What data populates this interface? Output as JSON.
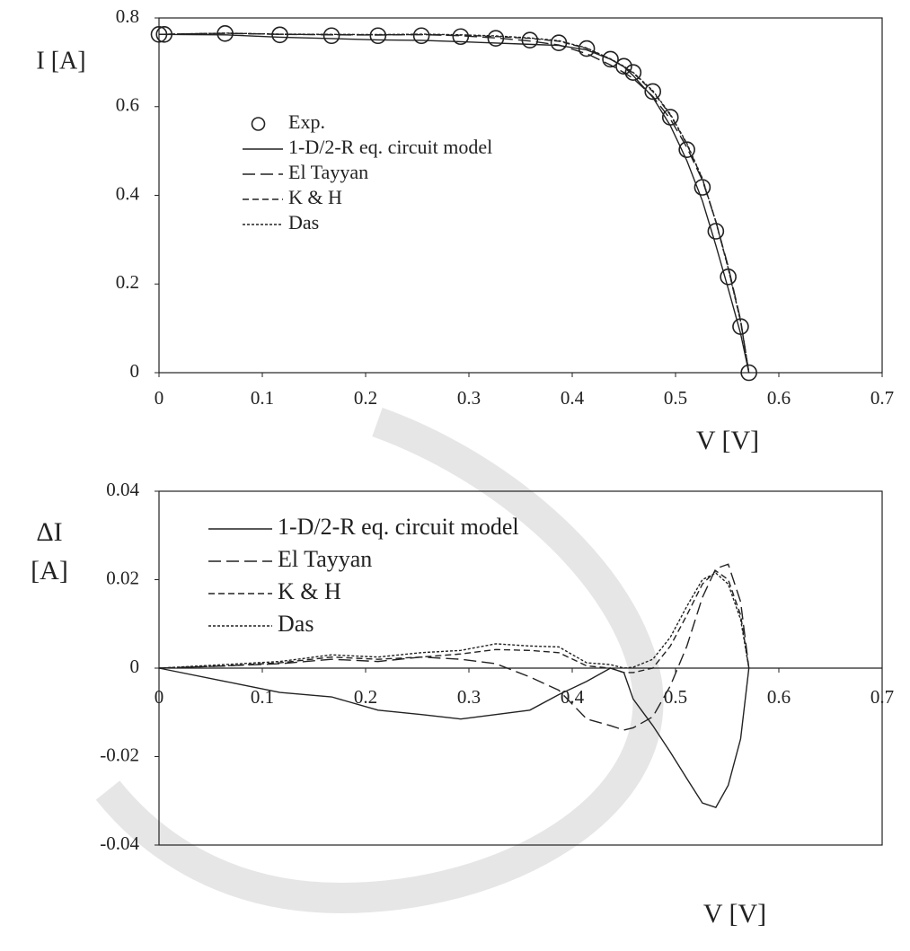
{
  "chart_data": [
    {
      "type": "line",
      "xlabel": "V [V]",
      "ylabel": "I [A]",
      "xlim": [
        0,
        0.7
      ],
      "xticks": [
        0,
        0.1,
        0.2,
        0.3,
        0.4,
        0.5,
        0.6,
        0.7
      ],
      "ylim": [
        0,
        0.8
      ],
      "yticks": [
        0,
        0.2,
        0.4,
        0.6,
        0.8
      ],
      "x": [
        0,
        0.064,
        0.117,
        0.167,
        0.212,
        0.254,
        0.292,
        0.326,
        0.359,
        0.387,
        0.414,
        0.437,
        0.45,
        0.459,
        0.478,
        0.495,
        0.511,
        0.526,
        0.539,
        0.551,
        0.563,
        0.571
      ],
      "series": [
        {
          "name": "Exp.",
          "color": "#222222",
          "marker": "circle",
          "x": [
            0,
            0.005,
            0.064,
            0.117,
            0.167,
            0.212,
            0.254,
            0.292,
            0.326,
            0.359,
            0.387,
            0.414,
            0.437,
            0.45,
            0.459,
            0.478,
            0.495,
            0.511,
            0.526,
            0.539,
            0.551,
            0.563,
            0.571
          ],
          "values": [
            0.763,
            0.763,
            0.765,
            0.762,
            0.76,
            0.76,
            0.76,
            0.758,
            0.754,
            0.75,
            0.744,
            0.731,
            0.707,
            0.691,
            0.677,
            0.634,
            0.576,
            0.503,
            0.418,
            0.319,
            0.216,
            0.104,
            0
          ]
        },
        {
          "name": "1-D/2-R eq. circuit model",
          "color": "#222222",
          "dash": "none",
          "values": [
            0.763,
            0.762,
            0.7565,
            0.7535,
            0.7505,
            0.7495,
            0.7465,
            0.7435,
            0.7405,
            0.738,
            0.728,
            0.707,
            0.69,
            0.67,
            0.621,
            0.557,
            0.478,
            0.3875,
            0.2875,
            0.1895,
            0.088,
            0
          ]
        },
        {
          "name": "El Tayyan",
          "color": "#222222",
          "dash": "14,6",
          "values": [
            0.763,
            0.7655,
            0.763,
            0.762,
            0.7615,
            0.7625,
            0.76,
            0.755,
            0.748,
            0.739,
            0.7195,
            0.694,
            0.677,
            0.6635,
            0.623,
            0.572,
            0.508,
            0.434,
            0.3415,
            0.2395,
            0.119,
            0
          ]
        },
        {
          "name": "K & H",
          "color": "#222222",
          "dash": "7,4",
          "values": [
            0.763,
            0.7655,
            0.7632,
            0.7625,
            0.762,
            0.7625,
            0.7612,
            0.7582,
            0.754,
            0.7475,
            0.7315,
            0.707,
            0.69,
            0.676,
            0.634,
            0.581,
            0.515,
            0.437,
            0.341,
            0.236,
            0.116,
            0
          ]
        },
        {
          "name": "Das",
          "color": "#222222",
          "dash": "3,2",
          "values": [
            0.763,
            0.7658,
            0.7635,
            0.763,
            0.7625,
            0.7635,
            0.762,
            0.7595,
            0.755,
            0.7488,
            0.7322,
            0.7078,
            0.691,
            0.6772,
            0.636,
            0.583,
            0.517,
            0.438,
            0.3405,
            0.235,
            0.115,
            0
          ]
        }
      ]
    },
    {
      "type": "line",
      "xlabel": "V [V]",
      "ylabel": [
        "ΔI",
        "[A]"
      ],
      "zero_line": true,
      "xlim": [
        0,
        0.7
      ],
      "xticks": [
        0,
        0.1,
        0.2,
        0.3,
        0.4,
        0.5,
        0.6,
        0.7
      ],
      "ylim": [
        -0.04,
        0.04
      ],
      "yticks": [
        -0.04,
        -0.02,
        0,
        0.02,
        0.04
      ],
      "x": [
        0,
        0.064,
        0.117,
        0.167,
        0.212,
        0.254,
        0.292,
        0.326,
        0.359,
        0.387,
        0.414,
        0.437,
        0.45,
        0.459,
        0.478,
        0.495,
        0.511,
        0.526,
        0.539,
        0.551,
        0.563,
        0.571
      ],
      "series": [
        {
          "name": "1-D/2-R eq. circuit model",
          "color": "#222222",
          "dash": "none",
          "values": [
            0,
            -0.003,
            -0.0055,
            -0.0065,
            -0.0095,
            -0.0105,
            -0.0115,
            -0.0105,
            -0.0095,
            -0.006,
            -0.003,
            0,
            -0.001,
            -0.007,
            -0.013,
            -0.019,
            -0.025,
            -0.0305,
            -0.0315,
            -0.0265,
            -0.016,
            0
          ]
        },
        {
          "name": "El Tayyan",
          "color": "#222222",
          "dash": "14,6",
          "values": [
            0,
            0.0005,
            0.001,
            0.002,
            0.0015,
            0.0025,
            0.002,
            0.001,
            -0.002,
            -0.005,
            -0.0115,
            -0.013,
            -0.014,
            -0.0135,
            -0.011,
            -0.004,
            0.005,
            0.016,
            0.0225,
            0.0235,
            0.015,
            0
          ]
        },
        {
          "name": "K & H",
          "color": "#222222",
          "dash": "7,4",
          "values": [
            0,
            0.0005,
            0.0012,
            0.0025,
            0.002,
            0.0025,
            0.0032,
            0.0042,
            0.004,
            0.0035,
            0.0005,
            0,
            -0.001,
            -0.001,
            0,
            0.005,
            0.012,
            0.019,
            0.022,
            0.02,
            0.012,
            0
          ]
        },
        {
          "name": "Das",
          "color": "#222222",
          "dash": "3,2",
          "values": [
            0,
            0.0008,
            0.0015,
            0.003,
            0.0025,
            0.0035,
            0.004,
            0.0055,
            0.005,
            0.0048,
            0.0012,
            0.0008,
            0,
            0.0002,
            0.002,
            0.007,
            0.014,
            0.02,
            0.0215,
            0.019,
            0.011,
            0
          ]
        }
      ]
    }
  ]
}
